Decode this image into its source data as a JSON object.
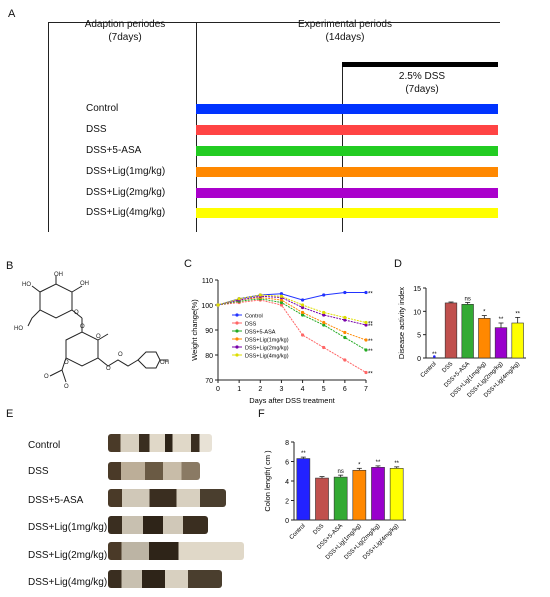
{
  "panelA": {
    "letter": "A",
    "adaption_title": "Adaption periodes",
    "adaption_days": "(7days)",
    "exp_title": "Experimental periods",
    "exp_days": "(14days)",
    "dss_title": "2.5% DSS",
    "dss_days": "(7days)",
    "groups": [
      {
        "label": "Control",
        "color": "#0033ff"
      },
      {
        "label": "DSS",
        "color": "#ff4444"
      },
      {
        "label": "DSS+5-ASA",
        "color": "#22cc22"
      },
      {
        "label": "DSS+Lig(1mg/kg)",
        "color": "#ff8800"
      },
      {
        "label": "DSS+Lig(2mg/kg)",
        "color": "#aa00cc"
      },
      {
        "label": "DSS+Lig(4mg/kg)",
        "color": "#ffff00"
      }
    ]
  },
  "panelB": {
    "letter": "B",
    "molecule": "chemical-structure",
    "labels": [
      "OH",
      "OH",
      "HO",
      "HO",
      "O",
      "O",
      "O",
      "O",
      "O",
      "O",
      "OH",
      "O",
      "O"
    ]
  },
  "panelC": {
    "letter": "C"
  },
  "panelD": {
    "letter": "D"
  },
  "panelE": {
    "letter": "E",
    "groups": [
      "Control",
      "DSS",
      "DSS+5-ASA",
      "DSS+Lig(1mg/kg)",
      "DSS+Lig(2mg/kg)",
      "DSS+Lig(4mg/kg)"
    ]
  },
  "panelF": {
    "letter": "F"
  },
  "chart_data": [
    {
      "id": "C",
      "type": "line",
      "xlabel": "Days after DSS treatment",
      "ylabel": "Weight change(%)",
      "x": [
        0,
        1,
        2,
        3,
        4,
        5,
        6,
        7
      ],
      "ylim": [
        70,
        110
      ],
      "yticks": [
        70,
        80,
        90,
        100,
        110
      ],
      "series": [
        {
          "name": "Control",
          "color": "#2233ff",
          "values": [
            100,
            102.5,
            104,
            104.5,
            102,
            104,
            105,
            105
          ],
          "sig": "**"
        },
        {
          "name": "DSS",
          "color": "#ff6666",
          "values": [
            100,
            101,
            102,
            100,
            88,
            83,
            78,
            73
          ],
          "sig": "**"
        },
        {
          "name": "DSS+5-ASA",
          "color": "#22aa22",
          "values": [
            100,
            101.5,
            102.5,
            101,
            96,
            92,
            87,
            82
          ],
          "sig": "**"
        },
        {
          "name": "DSS+Lig(1mg/kg)",
          "color": "#ff8800",
          "values": [
            100,
            102,
            103,
            102,
            97,
            93,
            89,
            86
          ],
          "sig": "**"
        },
        {
          "name": "DSS+Lig(2mg/kg)",
          "color": "#7700aa",
          "values": [
            100,
            102,
            103.5,
            103,
            99,
            96,
            94,
            92
          ],
          "sig": "**"
        },
        {
          "name": "DSS+Lig(4mg/kg)",
          "color": "#dddd00",
          "values": [
            100,
            102.5,
            104,
            103.5,
            100,
            97,
            95,
            93
          ],
          "sig": "**"
        }
      ]
    },
    {
      "id": "D",
      "type": "bar",
      "ylabel": "Disease activity index",
      "ylim": [
        0,
        15
      ],
      "yticks": [
        0,
        5,
        10,
        15
      ],
      "categories": [
        "Control",
        "DSS",
        "DSS+5-ASA",
        "DSS+Lig(1mg/kg)",
        "DSS+Lig(2mg/kg)",
        "DSS+Lig(4mg/kg)"
      ],
      "values": [
        0,
        11.8,
        11.5,
        8.5,
        6.5,
        7.5
      ],
      "errors": [
        0,
        0.2,
        0.4,
        0.6,
        1.0,
        1.2
      ],
      "colors": [
        "#2222ff",
        "#c0504d",
        "#33aa33",
        "#ff8800",
        "#9900cc",
        "#ffff00"
      ],
      "sig": [
        "**",
        "",
        "ns",
        "*",
        "**",
        "**"
      ]
    },
    {
      "id": "F",
      "type": "bar",
      "ylabel": "Colon length( cm )",
      "ylim": [
        0,
        8
      ],
      "yticks": [
        0,
        2,
        4,
        6,
        8
      ],
      "categories": [
        "Control",
        "DSS",
        "DSS+5-ASA",
        "DSS+Lig(1mg/kg)",
        "DSS+Lig(2mg/kg)",
        "DSS+Lig(4mg/kg)"
      ],
      "values": [
        6.3,
        4.3,
        4.4,
        5.1,
        5.4,
        5.3
      ],
      "errors": [
        0.15,
        0.15,
        0.2,
        0.2,
        0.15,
        0.15
      ],
      "colors": [
        "#2222ff",
        "#c0504d",
        "#33aa33",
        "#ff8800",
        "#9900cc",
        "#ffff00"
      ],
      "sig": [
        "**",
        "",
        "ns",
        "*",
        "**",
        "**"
      ]
    }
  ]
}
